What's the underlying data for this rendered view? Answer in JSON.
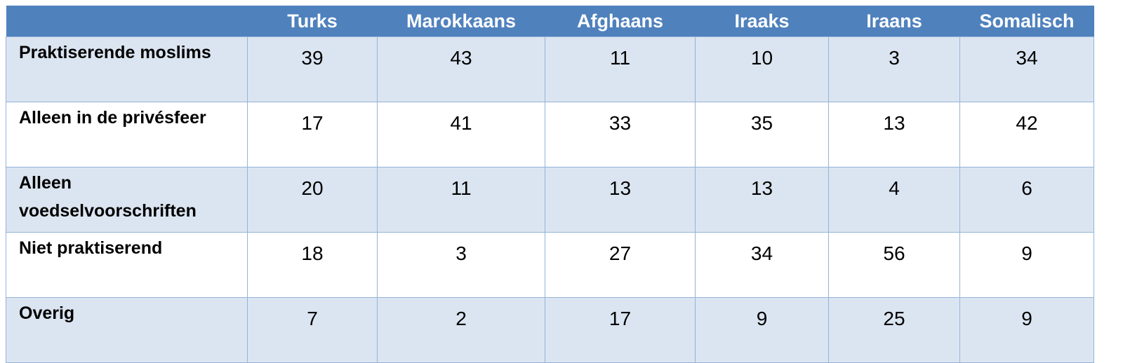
{
  "table": {
    "columns": [
      "Turks",
      "Marokkaans",
      "Afghaans",
      "Iraaks",
      "Iraans",
      "Somalisch"
    ],
    "rows": [
      {
        "label": "Praktiserende moslims",
        "values": [
          39,
          43,
          11,
          10,
          3,
          34
        ]
      },
      {
        "label": "Alleen in de privésfeer",
        "values": [
          17,
          41,
          33,
          35,
          13,
          42
        ]
      },
      {
        "label": "Alleen voedselvoorschriften",
        "values": [
          20,
          11,
          13,
          13,
          4,
          6
        ]
      },
      {
        "label": "Niet praktiserend",
        "values": [
          18,
          3,
          27,
          34,
          56,
          9
        ]
      },
      {
        "label": "Overig",
        "values": [
          7,
          2,
          17,
          9,
          25,
          9
        ]
      }
    ]
  }
}
